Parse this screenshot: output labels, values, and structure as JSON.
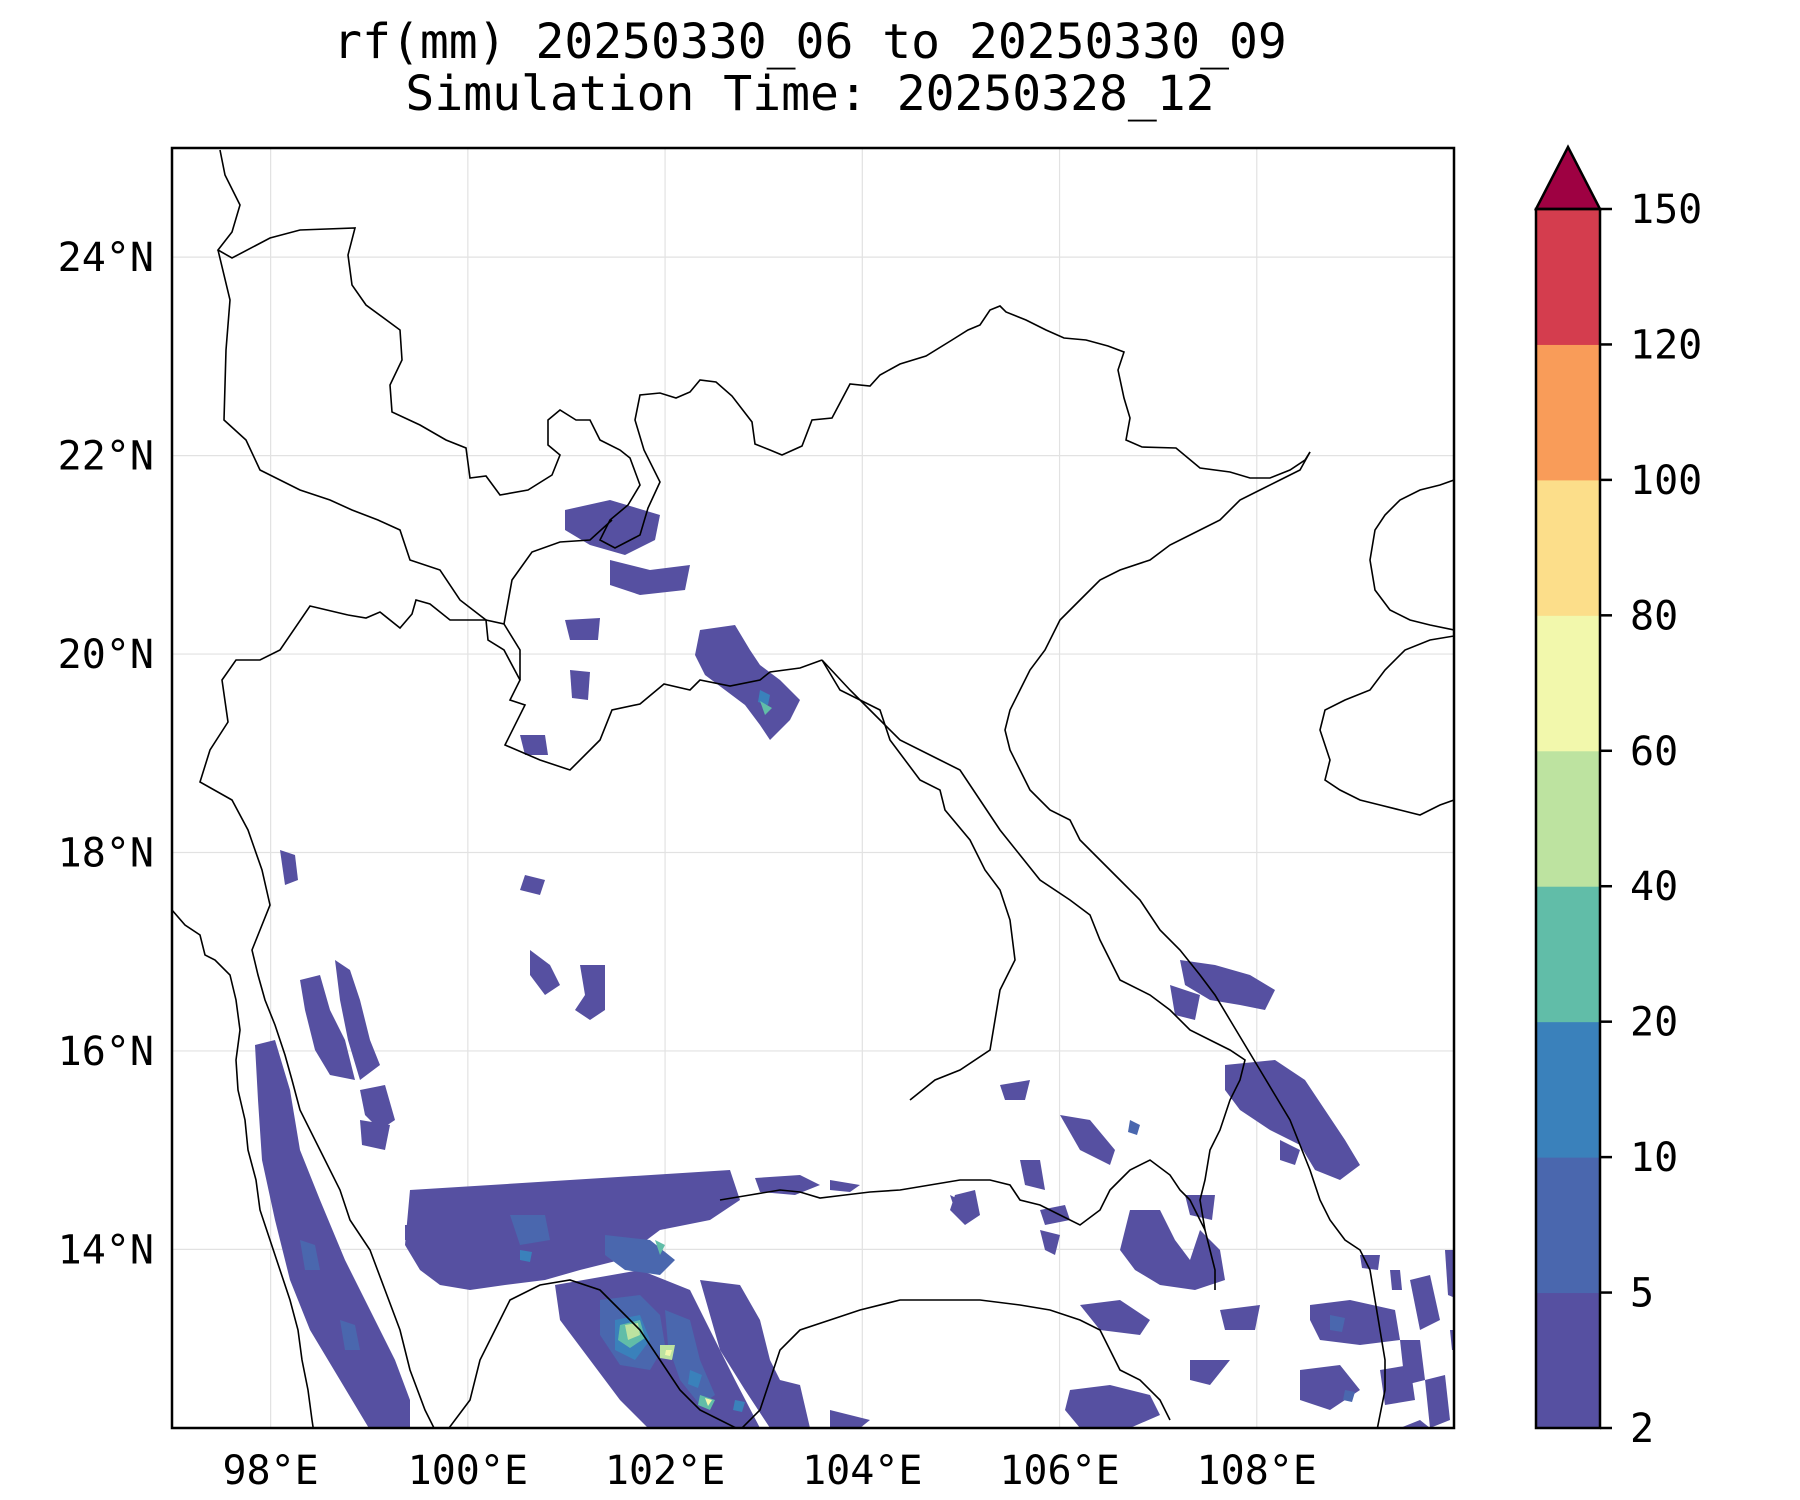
{
  "title_line1": "rf(mm) 20250330_06 to 20250330_09",
  "title_line2": "Simulation Time: 20250328_12",
  "map": {
    "lon_range": [
      97,
      110
    ],
    "lat_range": [
      12.2,
      25.1
    ],
    "lon_ticks": [
      {
        "value": 98,
        "label": "98°E"
      },
      {
        "value": 100,
        "label": "100°E"
      },
      {
        "value": 102,
        "label": "102°E"
      },
      {
        "value": 104,
        "label": "104°E"
      },
      {
        "value": 106,
        "label": "106°E"
      },
      {
        "value": 108,
        "label": "108°E"
      }
    ],
    "lat_ticks": [
      {
        "value": 24,
        "label": "24°N"
      },
      {
        "value": 22,
        "label": "22°N"
      },
      {
        "value": 20,
        "label": "20°N"
      },
      {
        "value": 18,
        "label": "18°N"
      },
      {
        "value": 16,
        "label": "16°N"
      },
      {
        "value": 14,
        "label": "14°N"
      }
    ],
    "gridlines": true
  },
  "colorbar": {
    "levels": [
      "2",
      "5",
      "10",
      "20",
      "40",
      "60",
      "80",
      "100",
      "120",
      "150"
    ],
    "colors": [
      "#5650a1",
      "#4a67ae",
      "#3a81bb",
      "#61bda8",
      "#bde3a0",
      "#f2f8ac",
      "#fcde8a",
      "#f99c59",
      "#d43d4e"
    ],
    "extend_color": "#9e0142"
  }
}
